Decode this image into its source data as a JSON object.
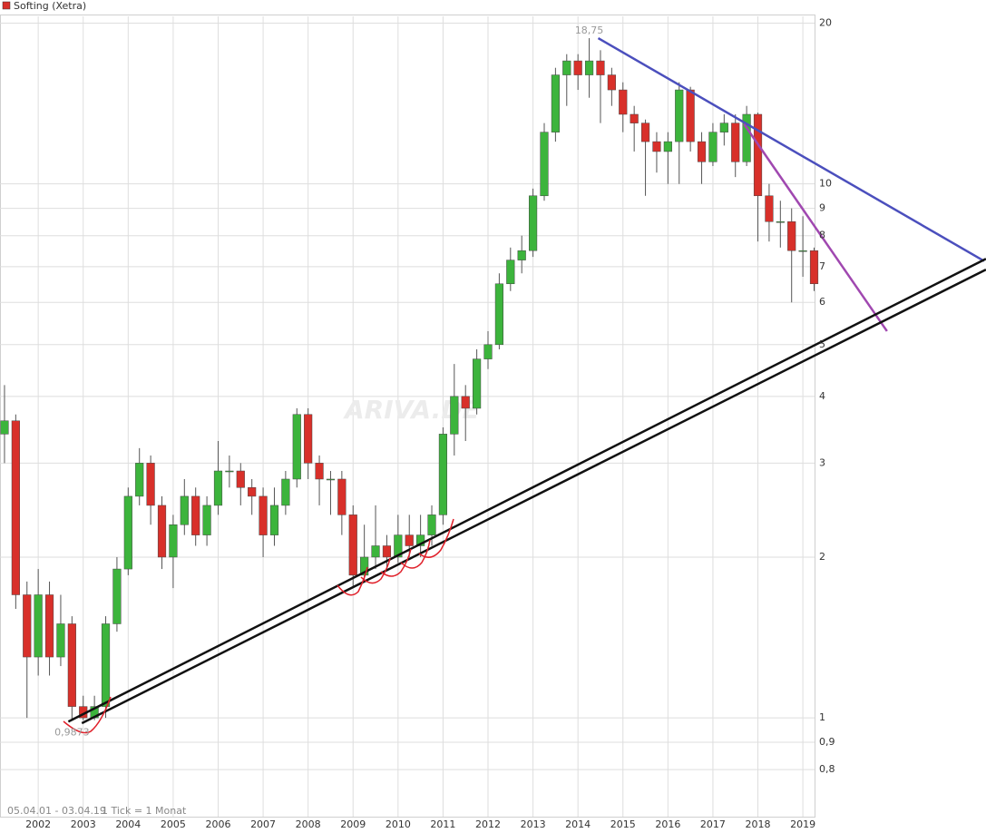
{
  "chart_data": {
    "type": "candlestick",
    "legend": "Softing (Xetra)",
    "watermark": "ARIVA.DE",
    "footer": [
      "05.04.01 - 03.04.19",
      "1 Tick = 1 Monat"
    ],
    "log_scale": true,
    "grid": true,
    "up_color": "#3cb43c",
    "down_color": "#d8302a",
    "legend_color": "#d8302a",
    "xlim": [
      2001.15,
      2019.26
    ],
    "xticks": [
      2002,
      2003,
      2004,
      2005,
      2006,
      2007,
      2008,
      2009,
      2010,
      2011,
      2012,
      2013,
      2014,
      2015,
      2016,
      2017,
      2018,
      2019
    ],
    "ylim": [
      0.653,
      20.6
    ],
    "yticks": [
      20,
      10,
      9,
      8,
      7,
      6,
      5,
      4,
      3,
      2,
      1,
      {
        "value": 0.9,
        "label": "0,9"
      },
      {
        "value": 0.8,
        "label": "0,8"
      }
    ],
    "x": [
      2001.25,
      2001.5,
      2001.75,
      2002,
      2002.25,
      2002.5,
      2002.75,
      2003,
      2003.25,
      2003.5,
      2003.75,
      2004,
      2004.25,
      2004.5,
      2004.75,
      2005,
      2005.25,
      2005.5,
      2005.75,
      2006,
      2006.25,
      2006.5,
      2006.75,
      2007,
      2007.25,
      2007.5,
      2007.75,
      2008,
      2008.25,
      2008.5,
      2008.75,
      2009,
      2009.25,
      2009.5,
      2009.75,
      2010,
      2010.25,
      2010.5,
      2010.75,
      2011,
      2011.25,
      2011.5,
      2011.75,
      2012,
      2012.25,
      2012.5,
      2012.75,
      2013,
      2013.25,
      2013.5,
      2013.75,
      2014,
      2014.25,
      2014.5,
      2014.75,
      2015,
      2015.25,
      2015.5,
      2015.75,
      2016,
      2016.25,
      2016.5,
      2016.75,
      2017,
      2017.25,
      2017.5,
      2017.75,
      2018,
      2018.25,
      2018.5,
      2018.75,
      2019,
      2019.25
    ],
    "open": [
      3.4,
      3.6,
      1.7,
      1.3,
      1.7,
      1.3,
      1.5,
      1.05,
      1.0,
      1.05,
      1.5,
      1.9,
      2.6,
      3.0,
      2.5,
      2.0,
      2.3,
      2.6,
      2.2,
      2.5,
      2.9,
      2.9,
      2.7,
      2.6,
      2.2,
      2.5,
      2.8,
      3.7,
      3.0,
      2.8,
      2.8,
      2.4,
      1.85,
      2.0,
      2.1,
      2.0,
      2.2,
      2.1,
      2.2,
      2.4,
      3.4,
      4.0,
      3.8,
      4.7,
      5.0,
      6.5,
      7.2,
      7.5,
      9.5,
      12.5,
      16,
      17,
      16,
      17,
      16,
      15,
      13.5,
      13,
      12,
      11.5,
      12,
      15,
      12,
      11,
      12.5,
      13,
      11,
      13.5,
      9.5,
      8.5,
      8.5,
      7.5,
      7.5
    ],
    "high": [
      4.2,
      3.7,
      1.8,
      1.9,
      1.8,
      1.7,
      1.55,
      1.1,
      1.1,
      1.55,
      2.0,
      2.7,
      3.2,
      3.1,
      2.6,
      2.4,
      2.8,
      2.7,
      2.6,
      3.3,
      3.1,
      3.0,
      2.8,
      2.7,
      2.7,
      2.9,
      3.8,
      3.8,
      3.1,
      2.9,
      2.9,
      2.5,
      2.3,
      2.5,
      2.2,
      2.4,
      2.4,
      2.4,
      2.5,
      3.5,
      4.6,
      4.2,
      4.9,
      5.3,
      6.8,
      7.6,
      8.0,
      9.8,
      13,
      16.5,
      17.5,
      17.5,
      18.75,
      17.8,
      16.5,
      15.5,
      14,
      13.2,
      12.5,
      12.5,
      15.5,
      15.2,
      12.5,
      13,
      13.5,
      13.5,
      14,
      13.6,
      10,
      9.3,
      9.0,
      8.7,
      7.6
    ],
    "low": [
      3.0,
      1.6,
      1.0,
      1.2,
      1.2,
      1.25,
      0.9873,
      0.99,
      0.99,
      1.0,
      1.45,
      1.85,
      2.5,
      2.3,
      1.9,
      1.75,
      2.2,
      2.1,
      2.1,
      2.4,
      2.7,
      2.5,
      2.4,
      2.0,
      2.1,
      2.4,
      2.7,
      2.8,
      2.5,
      2.4,
      2.2,
      1.75,
      1.8,
      1.9,
      1.9,
      1.95,
      2.0,
      2.0,
      2.1,
      2.3,
      3.1,
      3.3,
      3.7,
      4.5,
      4.9,
      6.3,
      6.8,
      7.3,
      9.3,
      12,
      14,
      15,
      14.5,
      13,
      14,
      12.5,
      11.5,
      9.5,
      10.5,
      10,
      10,
      11.5,
      10,
      10.8,
      11.8,
      10.3,
      10.8,
      7.8,
      7.8,
      7.6,
      6.0,
      6.7,
      6.3
    ],
    "close": [
      3.6,
      1.7,
      1.3,
      1.7,
      1.3,
      1.5,
      1.05,
      1.0,
      1.05,
      1.5,
      1.9,
      2.6,
      3.0,
      2.5,
      2.0,
      2.3,
      2.6,
      2.2,
      2.5,
      2.9,
      2.9,
      2.7,
      2.6,
      2.2,
      2.5,
      2.8,
      3.7,
      3.0,
      2.8,
      2.8,
      2.4,
      1.85,
      2.0,
      2.1,
      2.0,
      2.2,
      2.1,
      2.2,
      2.4,
      3.4,
      4.0,
      3.8,
      4.7,
      5.0,
      6.5,
      7.2,
      7.5,
      9.5,
      12.5,
      16,
      17,
      16,
      17,
      16,
      15,
      13.5,
      13,
      12,
      11.5,
      12,
      15,
      12,
      11,
      12.5,
      13,
      11,
      13.5,
      9.5,
      8.5,
      8.5,
      7.5,
      7.5,
      6.5
    ],
    "annotations": [
      {
        "label": "18,75",
        "value": 18.75
      },
      {
        "label": "0,9873",
        "value": 0.9873
      }
    ],
    "trendlines": [
      {
        "color": "#4b4fbd",
        "points": [
          [
            2014.45,
            18.75
          ],
          [
            2023.03,
            7.17
          ]
        ]
      },
      {
        "color": "#a048b0",
        "points": [
          [
            2017.69,
            12.95
          ],
          [
            2020.87,
            5.3
          ]
        ]
      },
      {
        "color": "#111111",
        "points": [
          [
            2002.67,
            0.984
          ],
          [
            2023.07,
            7.24
          ]
        ]
      },
      {
        "color": "#111111",
        "points": [
          [
            2002.97,
            0.977
          ],
          [
            2023.07,
            6.91
          ]
        ]
      }
    ]
  }
}
